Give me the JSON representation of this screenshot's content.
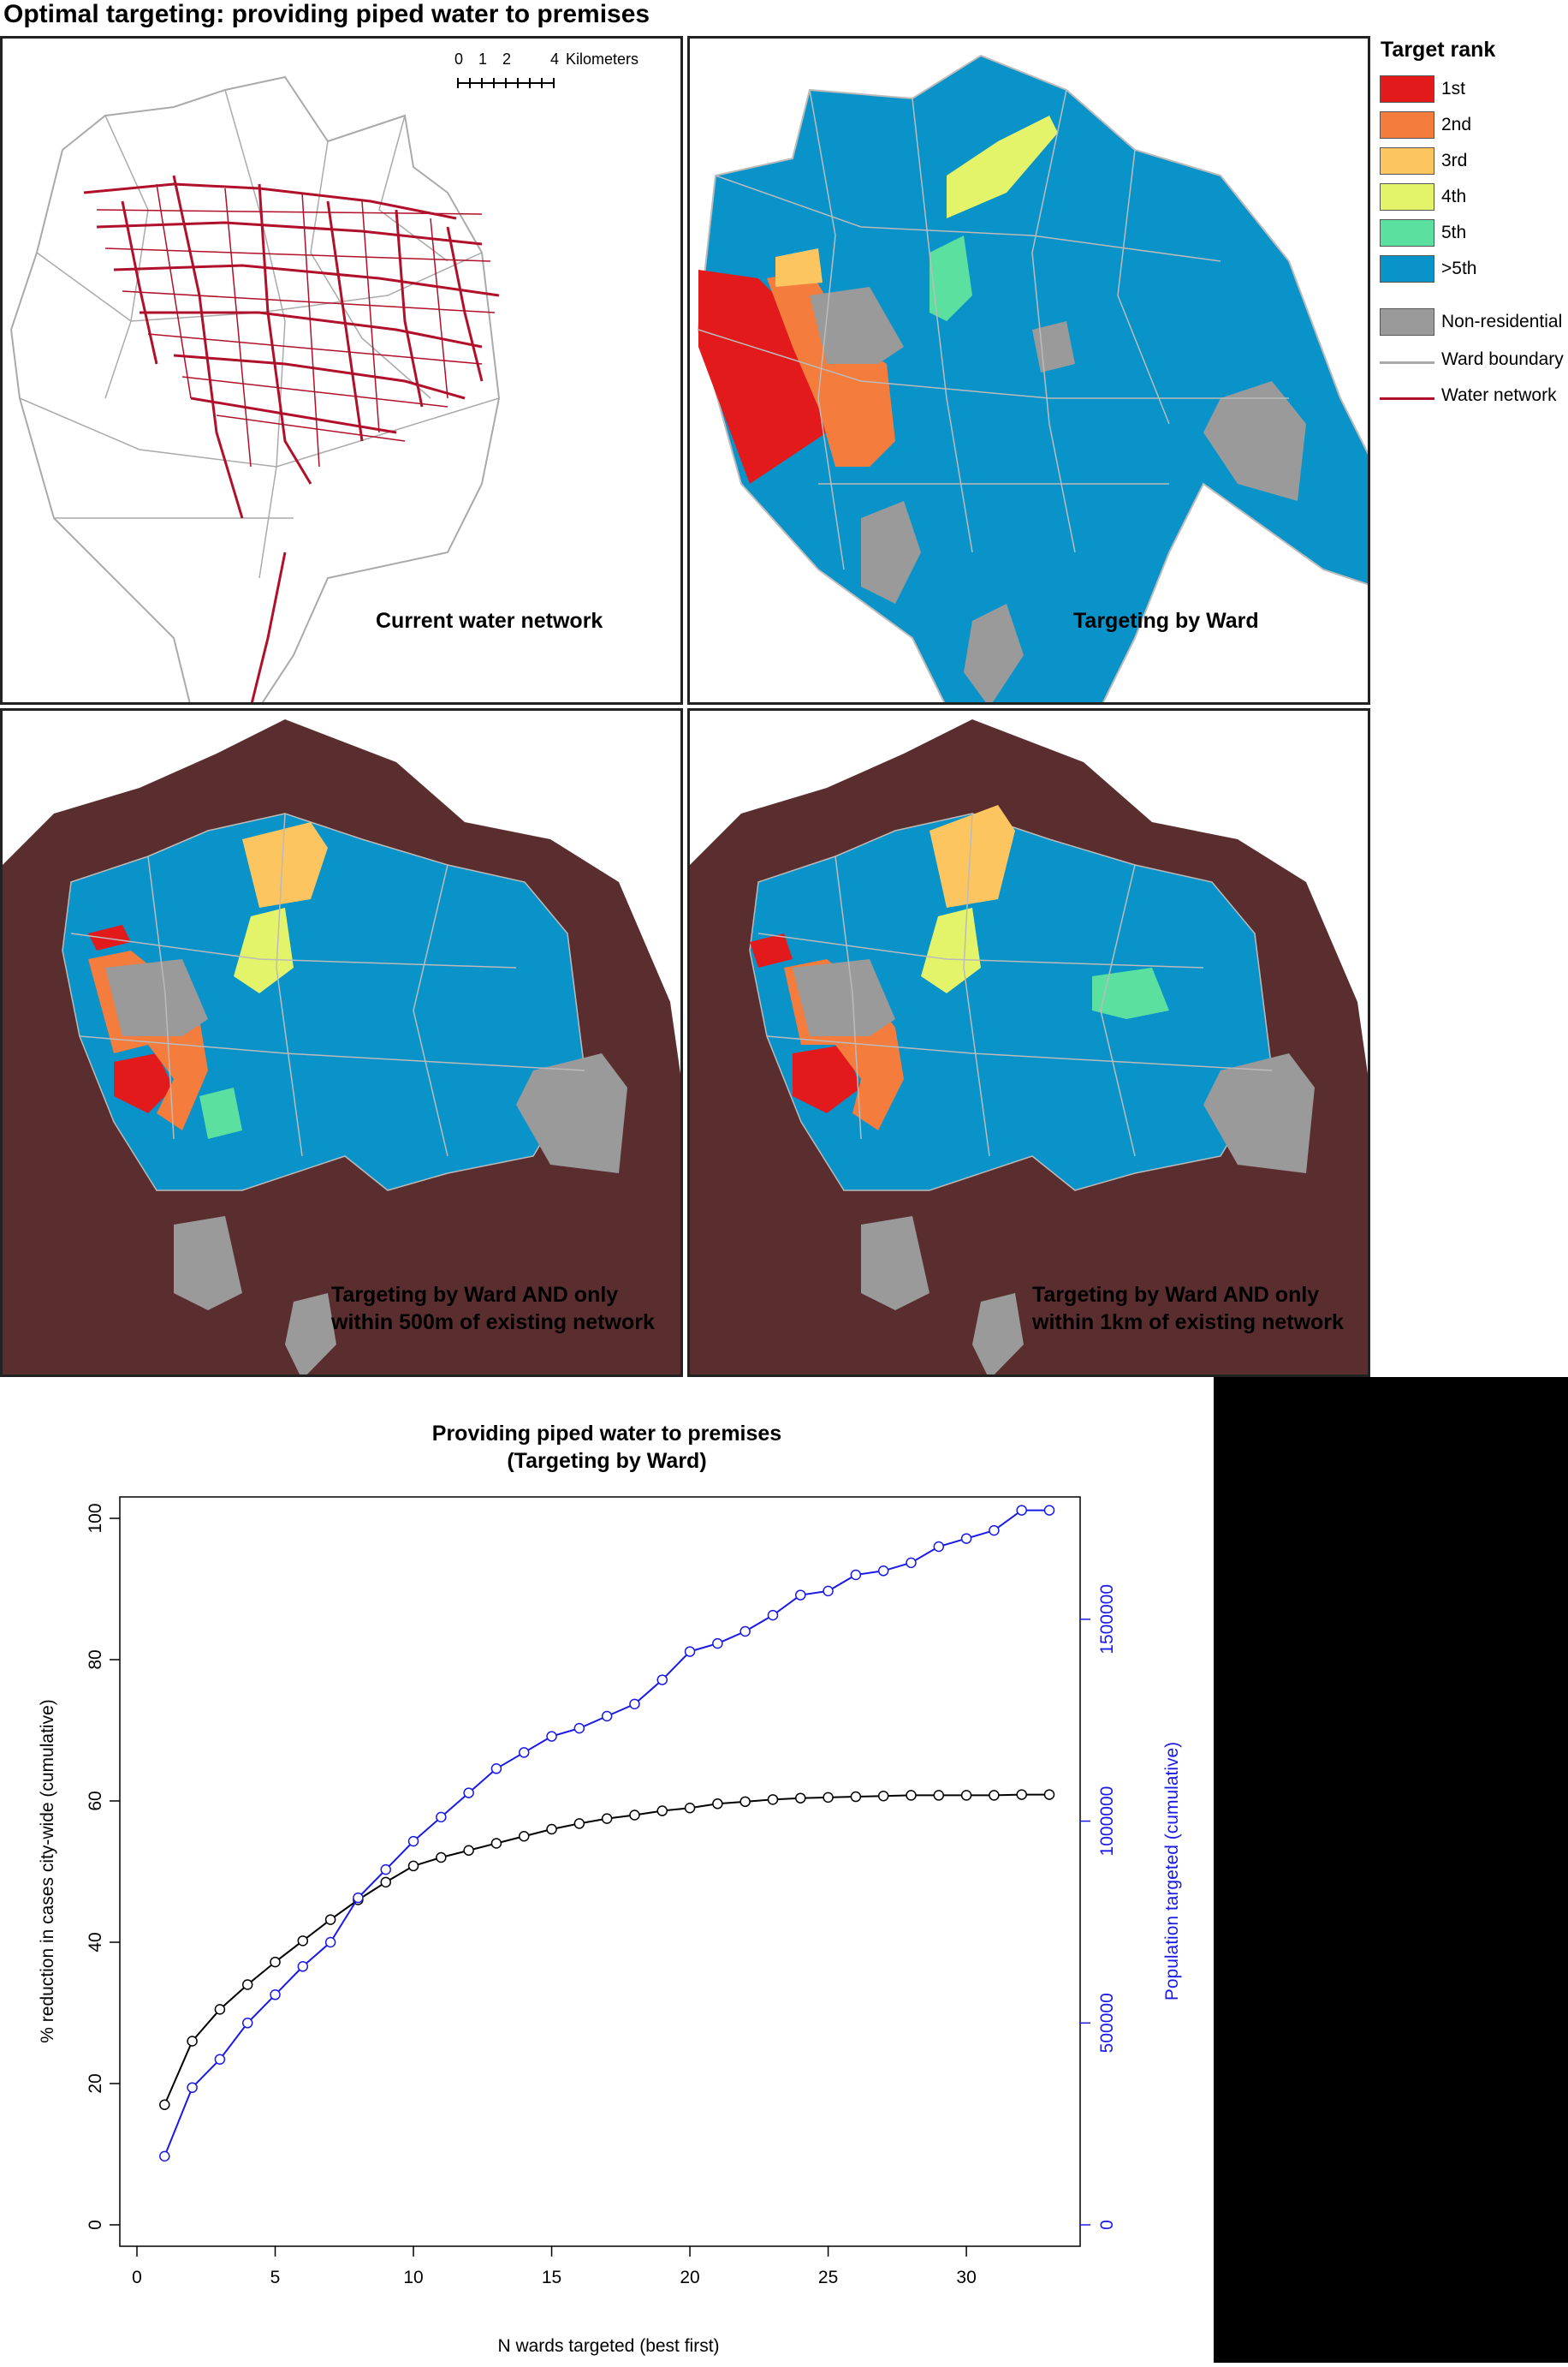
{
  "title": "Optimal targeting: providing piped water to premises",
  "scale_bar": {
    "ticks": [
      "0",
      "1",
      "2",
      "4"
    ],
    "unit": "Kilometers"
  },
  "panels": [
    {
      "caption_lines": [
        "Current water network"
      ]
    },
    {
      "caption_lines": [
        "Targeting by Ward"
      ]
    },
    {
      "caption_lines": [
        "Targeting by Ward AND only",
        "within 500m of existing network"
      ]
    },
    {
      "caption_lines": [
        "Targeting by Ward AND only",
        "within 1km of existing network"
      ]
    }
  ],
  "legend": {
    "title": "Target rank",
    "ranks": [
      {
        "label": "1st",
        "color": "#e31a1c"
      },
      {
        "label": "2nd",
        "color": "#f47c3c"
      },
      {
        "label": "3rd",
        "color": "#fdc55f"
      },
      {
        "label": "4th",
        "color": "#e3f36a"
      },
      {
        "label": ">5th",
        "color": "#0a93c8"
      }
    ],
    "rank5": {
      "label": "5th",
      "color": "#5ce0a0"
    },
    "non_residential": {
      "label": "Non-residential",
      "color": "#9a9a9a"
    },
    "ward_boundary": {
      "label": "Ward boundary",
      "color": "#aaaaaa"
    },
    "water_network": {
      "label": "Water network",
      "color": "#b0102a"
    }
  },
  "colors": {
    "excluded": "#5a2e2e",
    "black_series": "#000000",
    "blue_series": "#1a1ae6"
  },
  "chart_data": {
    "type": "line",
    "title": "Providing piped water to premises",
    "subtitle": "(Targeting by Ward)",
    "xlabel": "N wards targeted (best first)",
    "ylabel": "% reduction in cases city-wide (cumulative)",
    "y2label": "Population targeted (cumulative)",
    "xlim": [
      0,
      33
    ],
    "ylim": [
      0,
      100
    ],
    "y2lim": [
      0,
      1750000
    ],
    "x_ticks": [
      0,
      5,
      10,
      15,
      20,
      25,
      30
    ],
    "y_ticks": [
      0,
      20,
      40,
      60,
      80,
      100
    ],
    "y2_ticks": [
      0,
      500000,
      1000000,
      1500000
    ],
    "x": [
      1,
      2,
      3,
      4,
      5,
      6,
      7,
      8,
      9,
      10,
      11,
      12,
      13,
      14,
      15,
      16,
      17,
      18,
      19,
      20,
      21,
      22,
      23,
      24,
      25,
      26,
      27,
      28,
      29,
      30,
      31,
      32,
      33
    ],
    "series": [
      {
        "axis": "left",
        "color": "#000000",
        "values": [
          17,
          26,
          30.5,
          34,
          37.2,
          40.2,
          43.2,
          46,
          48.5,
          50.8,
          52,
          53,
          54,
          55,
          56,
          56.8,
          57.5,
          58,
          58.6,
          59,
          59.6,
          59.9,
          60.2,
          60.4,
          60.5,
          60.6,
          60.7,
          60.8,
          60.8,
          60.8,
          60.8,
          60.9,
          60.9
        ]
      },
      {
        "axis": "right",
        "color": "#1a1ae6",
        "values": [
          170000,
          340000,
          410000,
          500000,
          570000,
          640000,
          700000,
          810000,
          880000,
          950000,
          1010000,
          1070000,
          1130000,
          1170000,
          1210000,
          1230000,
          1260000,
          1290000,
          1350000,
          1420000,
          1440000,
          1470000,
          1510000,
          1560000,
          1570000,
          1610000,
          1620000,
          1640000,
          1680000,
          1700000,
          1720000,
          1770000,
          1770000
        ]
      }
    ]
  }
}
